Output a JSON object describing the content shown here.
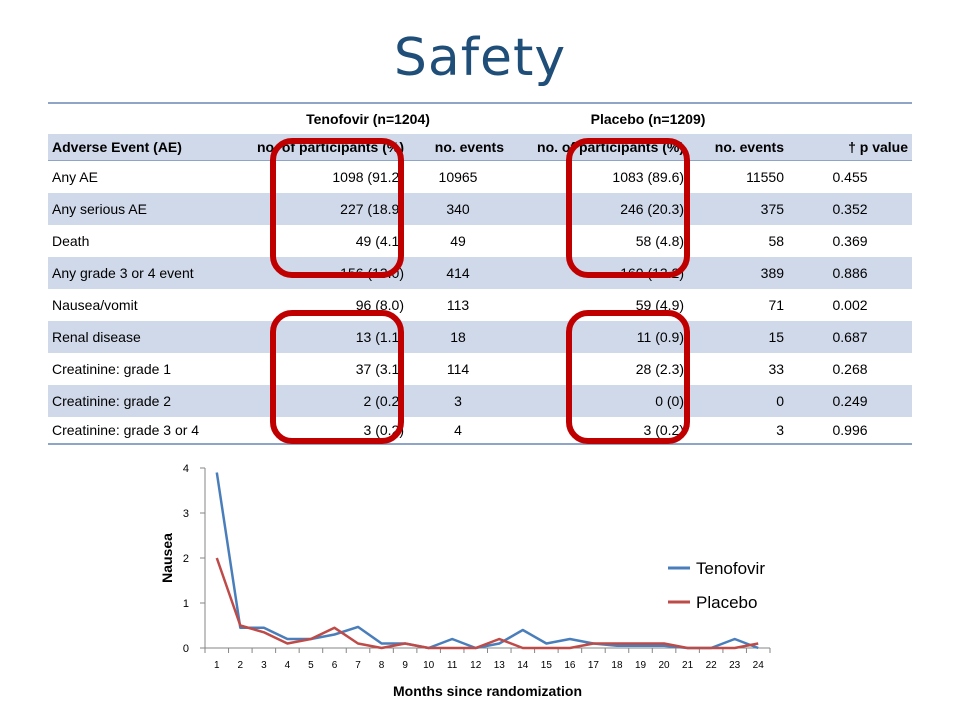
{
  "title": "Safety",
  "table": {
    "group_headers": [
      "Tenofovir (n=1204)",
      "Placebo (n=1209)"
    ],
    "columns": [
      "Adverse Event (AE)",
      "no. of participants (%)",
      "no. events",
      "no. of participants (%)",
      "no. events",
      "† p value"
    ],
    "rows": [
      [
        "Any AE",
        "1098 (91.2)",
        "10965",
        "1083 (89.6)",
        "11550",
        "0.455"
      ],
      [
        "Any serious AE",
        "227 (18.9)",
        "340",
        "246 (20.3)",
        "375",
        "0.352"
      ],
      [
        "Death",
        "49 (4.1)",
        "49",
        "58 (4.8)",
        "58",
        "0.369"
      ],
      [
        "Any grade 3 or 4 event",
        "156 (13.0)",
        "414",
        "160 (13.2)",
        "389",
        "0.886"
      ],
      [
        "Nausea/vomit",
        "96 (8.0)",
        "113",
        "59 (4.9)",
        "71",
        "0.002"
      ],
      [
        "Renal disease",
        "13 (1.1)",
        "18",
        "11 (0.9)",
        "15",
        "0.687"
      ],
      [
        "Creatinine: grade 1",
        "37 (3.1)",
        "114",
        "28 (2.3)",
        "33",
        "0.268"
      ],
      [
        "Creatinine: grade 2",
        "2 (0.2)",
        "3",
        "0 (0)",
        "0",
        "0.249"
      ],
      [
        "Creatinine: grade 3 or 4",
        "3 (0.2)",
        "4",
        "3 (0.2)",
        "3",
        "0.996"
      ]
    ],
    "highlight_color": "#c00000"
  },
  "chart_data": {
    "type": "line",
    "xlabel": "Months since randomization",
    "ylabel": "Nausea",
    "x": [
      1,
      2,
      3,
      4,
      5,
      6,
      7,
      8,
      9,
      10,
      11,
      12,
      13,
      14,
      15,
      16,
      17,
      18,
      19,
      20,
      21,
      22,
      23,
      24
    ],
    "ylim": [
      0,
      4
    ],
    "yticks": [
      0,
      1,
      2,
      3,
      4
    ],
    "grid": false,
    "legend": "right",
    "series": [
      {
        "name": "Tenofovir",
        "color": "#4a7ebb",
        "values": [
          3.9,
          0.45,
          0.45,
          0.2,
          0.2,
          0.3,
          0.47,
          0.1,
          0.1,
          0.0,
          0.2,
          0.0,
          0.1,
          0.4,
          0.1,
          0.2,
          0.1,
          0.05,
          0.05,
          0.05,
          0.0,
          0.0,
          0.2,
          0.0
        ]
      },
      {
        "name": "Placebo",
        "color": "#be4b48",
        "values": [
          2.0,
          0.5,
          0.35,
          0.1,
          0.2,
          0.45,
          0.1,
          0.0,
          0.1,
          0.0,
          0.0,
          0.0,
          0.2,
          0.0,
          0.0,
          0.0,
          0.1,
          0.1,
          0.1,
          0.1,
          0.0,
          0.0,
          0.0,
          0.1
        ]
      }
    ]
  }
}
